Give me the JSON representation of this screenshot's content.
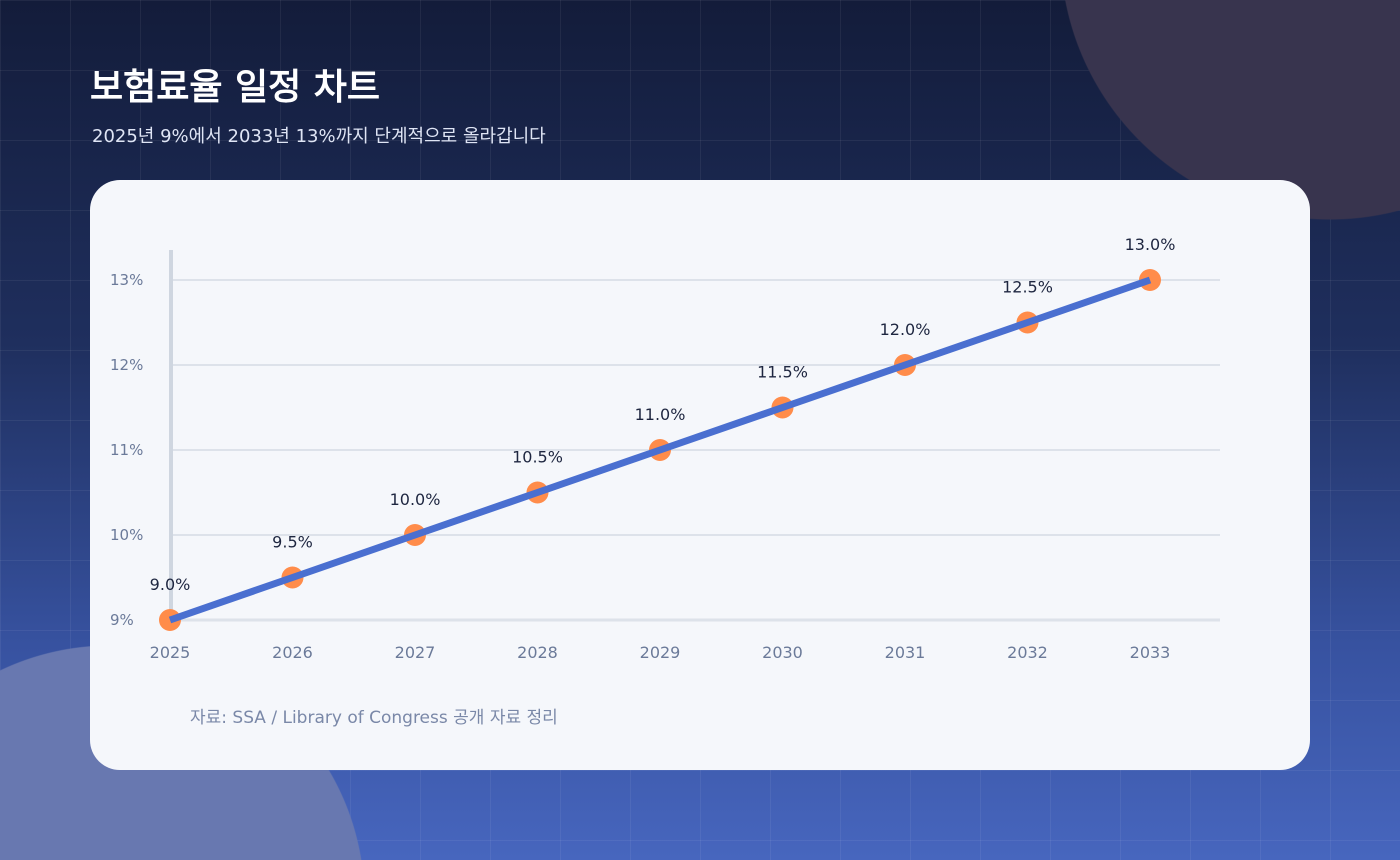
{
  "header": {
    "title": "보험료율 일정 차트",
    "subtitle": "2025년 9%에서 2033년 13%까지 단계적으로 올라갑니다"
  },
  "source": "자료: SSA / Library of Congress 공개 자료 정리",
  "colors": {
    "line": "#4a6fd0",
    "marker": "#ff8c4a",
    "grid": "#dde2ea",
    "axis": "#cfd6e0",
    "tick_label": "#6b7a99",
    "data_label": "#1e2640"
  },
  "chart_data": {
    "type": "line",
    "title": "",
    "xlabel": "",
    "ylabel": "",
    "categories": [
      "2025",
      "2026",
      "2027",
      "2028",
      "2029",
      "2030",
      "2031",
      "2032",
      "2033"
    ],
    "values": [
      9.0,
      9.5,
      10.0,
      10.5,
      11.0,
      11.5,
      12.0,
      12.5,
      13.0
    ],
    "data_labels": [
      "9.0%",
      "9.5%",
      "10.0%",
      "10.5%",
      "11.0%",
      "11.5%",
      "12.0%",
      "12.5%",
      "13.0%"
    ],
    "y_ticks": [
      9,
      10,
      11,
      12,
      13
    ],
    "y_tick_labels": [
      "9%",
      "10%",
      "11%",
      "12%",
      "13%"
    ],
    "ylim": [
      9,
      13
    ],
    "grid": true,
    "legend": "none"
  }
}
